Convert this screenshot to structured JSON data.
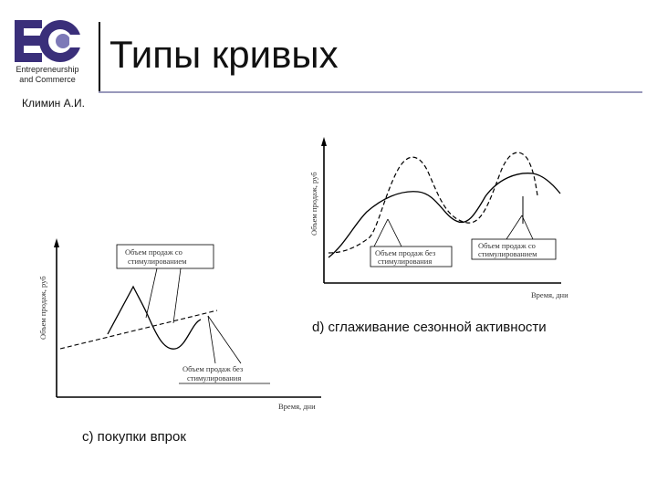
{
  "logo": {
    "letters": "EC",
    "line1": "Entrepreneurship",
    "line2": "and Commerce"
  },
  "title": "Типы кривых",
  "author": "Климин А.И.",
  "diagram_c": {
    "caption": "c) покупки впрок",
    "y_axis_label": "Объем продаж, руб",
    "x_axis_label": "Время, дни",
    "box_stimulated_line1": "Объем продаж со",
    "box_stimulated_line2": "стимулированием",
    "box_unstimulated_line1": "Объем продаж без",
    "box_unstimulated_line2": "стимулирования"
  },
  "diagram_d": {
    "caption": "d) сглаживание сезонной активности",
    "y_axis_label": "Объем продаж, руб",
    "x_axis_label": "Время, дни",
    "box_unstimulated_line1": "Объем продаж без",
    "box_unstimulated_line2": "стимулирования",
    "box_stimulated_line1": "Объем продаж со",
    "box_stimulated_line2": "стимулированием"
  }
}
